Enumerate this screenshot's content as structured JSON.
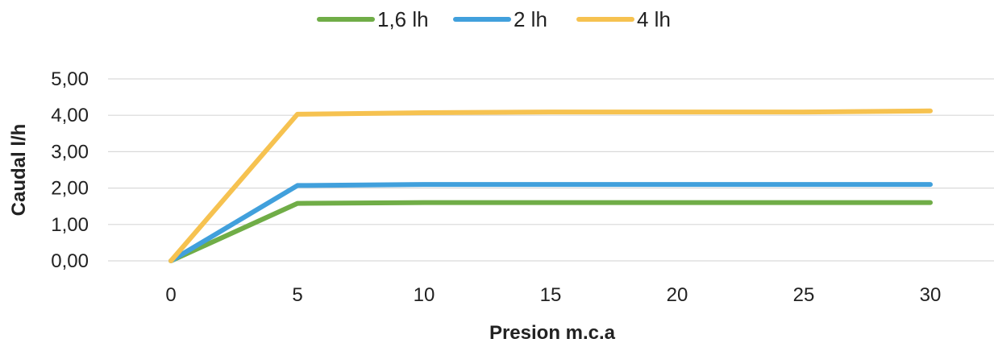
{
  "chart_data": {
    "type": "line",
    "title": "",
    "xlabel": "Presion m.c.a",
    "ylabel": "Caudal l/h",
    "x": [
      0,
      5,
      10,
      15,
      20,
      25,
      30
    ],
    "x_tick_labels": [
      "0",
      "5",
      "10",
      "15",
      "20",
      "25",
      "30"
    ],
    "ylim": [
      0,
      5
    ],
    "y_ticks": [
      0,
      1,
      2,
      3,
      4,
      5
    ],
    "y_tick_labels": [
      "0,00",
      "1,00",
      "2,00",
      "3,00",
      "4,00",
      "5,00"
    ],
    "grid": true,
    "legend_position": "top",
    "series": [
      {
        "name": "1,6 lh",
        "color": "#70ad47",
        "values": [
          0,
          1.58,
          1.6,
          1.6,
          1.6,
          1.6,
          1.6
        ]
      },
      {
        "name": "2 lh",
        "color": "#41a0dc",
        "values": [
          0,
          2.07,
          2.1,
          2.1,
          2.1,
          2.1,
          2.1
        ]
      },
      {
        "name": "4 lh",
        "color": "#f6c250",
        "values": [
          0,
          4.03,
          4.07,
          4.09,
          4.09,
          4.09,
          4.12
        ]
      }
    ]
  }
}
